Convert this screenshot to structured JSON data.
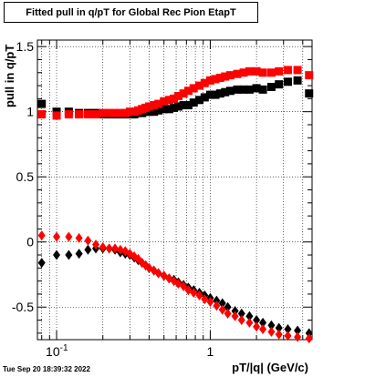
{
  "chart_data": {
    "type": "scatter",
    "title": "Fitted pull in q/pT for Global Rec Pion EtapT",
    "xlabel": "pT/|q| (GeV/c)",
    "ylabel": "pull in q/pT",
    "xscale": "log",
    "xlim": [
      0.075,
      4.6
    ],
    "ylim": [
      -0.75,
      1.55
    ],
    "x_tick_labels": [
      "10^-1",
      "1"
    ],
    "y_tick_labels": [
      "-0.5",
      "0",
      "0.5",
      "1",
      "1.5"
    ],
    "grid": true,
    "colors": {
      "black_series": "#000000",
      "red_series": "#ff0000"
    },
    "series": [
      {
        "marker": "square",
        "color": "black",
        "points": [
          [
            0.08,
            1.06
          ],
          [
            0.1,
            1.0
          ],
          [
            0.12,
            1.0
          ],
          [
            0.14,
            0.99
          ],
          [
            0.16,
            0.99
          ],
          [
            0.18,
            0.99
          ],
          [
            0.2,
            0.98
          ],
          [
            0.22,
            0.98
          ],
          [
            0.24,
            0.98
          ],
          [
            0.26,
            0.98
          ],
          [
            0.28,
            0.98
          ],
          [
            0.3,
            0.98
          ],
          [
            0.32,
            0.98
          ],
          [
            0.34,
            0.99
          ],
          [
            0.36,
            0.99
          ],
          [
            0.38,
            1.0
          ],
          [
            0.4,
            1.0
          ],
          [
            0.43,
            1.0
          ],
          [
            0.46,
            1.01
          ],
          [
            0.5,
            1.02
          ],
          [
            0.54,
            1.02
          ],
          [
            0.58,
            1.03
          ],
          [
            0.62,
            1.04
          ],
          [
            0.67,
            1.05
          ],
          [
            0.72,
            1.05
          ],
          [
            0.78,
            1.07
          ],
          [
            0.85,
            1.09
          ],
          [
            0.92,
            1.11
          ],
          [
            1.0,
            1.13
          ],
          [
            1.08,
            1.13
          ],
          [
            1.16,
            1.14
          ],
          [
            1.25,
            1.15
          ],
          [
            1.35,
            1.16
          ],
          [
            1.5,
            1.17
          ],
          [
            1.65,
            1.17
          ],
          [
            1.8,
            1.17
          ],
          [
            2.0,
            1.18
          ],
          [
            2.2,
            1.17
          ],
          [
            2.5,
            1.19
          ],
          [
            2.8,
            1.21
          ],
          [
            3.2,
            1.23
          ],
          [
            3.7,
            1.24
          ],
          [
            4.4,
            1.14
          ]
        ]
      },
      {
        "marker": "square",
        "color": "red",
        "points": [
          [
            0.08,
            0.98
          ],
          [
            0.1,
            0.97
          ],
          [
            0.12,
            0.98
          ],
          [
            0.14,
            0.98
          ],
          [
            0.16,
            0.98
          ],
          [
            0.18,
            0.98
          ],
          [
            0.2,
            0.99
          ],
          [
            0.22,
            0.99
          ],
          [
            0.24,
            0.99
          ],
          [
            0.26,
            0.99
          ],
          [
            0.28,
            0.99
          ],
          [
            0.3,
            1.0
          ],
          [
            0.32,
            1.0
          ],
          [
            0.34,
            1.01
          ],
          [
            0.36,
            1.02
          ],
          [
            0.38,
            1.03
          ],
          [
            0.4,
            1.04
          ],
          [
            0.43,
            1.05
          ],
          [
            0.46,
            1.06
          ],
          [
            0.5,
            1.08
          ],
          [
            0.54,
            1.09
          ],
          [
            0.58,
            1.1
          ],
          [
            0.62,
            1.12
          ],
          [
            0.67,
            1.14
          ],
          [
            0.72,
            1.16
          ],
          [
            0.78,
            1.18
          ],
          [
            0.85,
            1.2
          ],
          [
            0.92,
            1.22
          ],
          [
            1.0,
            1.24
          ],
          [
            1.08,
            1.25
          ],
          [
            1.16,
            1.26
          ],
          [
            1.25,
            1.27
          ],
          [
            1.35,
            1.28
          ],
          [
            1.5,
            1.29
          ],
          [
            1.65,
            1.3
          ],
          [
            1.8,
            1.31
          ],
          [
            2.0,
            1.31
          ],
          [
            2.2,
            1.3
          ],
          [
            2.5,
            1.3
          ],
          [
            2.8,
            1.31
          ],
          [
            3.2,
            1.32
          ],
          [
            3.7,
            1.32
          ],
          [
            4.4,
            1.28
          ]
        ]
      },
      {
        "marker": "diamond",
        "color": "black",
        "points": [
          [
            0.08,
            -0.16
          ],
          [
            0.1,
            -0.1
          ],
          [
            0.12,
            -0.1
          ],
          [
            0.14,
            -0.09
          ],
          [
            0.16,
            -0.06
          ],
          [
            0.18,
            -0.05
          ],
          [
            0.2,
            -0.05
          ],
          [
            0.22,
            -0.05
          ],
          [
            0.24,
            -0.06
          ],
          [
            0.26,
            -0.08
          ],
          [
            0.28,
            -0.09
          ],
          [
            0.3,
            -0.1
          ],
          [
            0.32,
            -0.12
          ],
          [
            0.34,
            -0.14
          ],
          [
            0.36,
            -0.16
          ],
          [
            0.38,
            -0.18
          ],
          [
            0.4,
            -0.2
          ],
          [
            0.43,
            -0.22
          ],
          [
            0.46,
            -0.24
          ],
          [
            0.5,
            -0.26
          ],
          [
            0.54,
            -0.28
          ],
          [
            0.58,
            -0.29
          ],
          [
            0.62,
            -0.31
          ],
          [
            0.67,
            -0.33
          ],
          [
            0.72,
            -0.35
          ],
          [
            0.78,
            -0.37
          ],
          [
            0.85,
            -0.39
          ],
          [
            0.92,
            -0.41
          ],
          [
            1.0,
            -0.43
          ],
          [
            1.1,
            -0.45
          ],
          [
            1.2,
            -0.47
          ],
          [
            1.3,
            -0.5
          ],
          [
            1.45,
            -0.53
          ],
          [
            1.6,
            -0.55
          ],
          [
            1.8,
            -0.57
          ],
          [
            2.0,
            -0.6
          ],
          [
            2.2,
            -0.62
          ],
          [
            2.5,
            -0.64
          ],
          [
            2.8,
            -0.66
          ],
          [
            3.2,
            -0.67
          ],
          [
            3.7,
            -0.68
          ],
          [
            4.4,
            -0.7
          ]
        ]
      },
      {
        "marker": "diamond",
        "color": "red",
        "points": [
          [
            0.08,
            0.05
          ],
          [
            0.1,
            0.04
          ],
          [
            0.12,
            0.04
          ],
          [
            0.14,
            0.03
          ],
          [
            0.16,
            0.01
          ],
          [
            0.18,
            -0.02
          ],
          [
            0.2,
            -0.04
          ],
          [
            0.22,
            -0.05
          ],
          [
            0.24,
            -0.05
          ],
          [
            0.26,
            -0.06
          ],
          [
            0.28,
            -0.07
          ],
          [
            0.3,
            -0.09
          ],
          [
            0.32,
            -0.11
          ],
          [
            0.34,
            -0.13
          ],
          [
            0.36,
            -0.16
          ],
          [
            0.38,
            -0.18
          ],
          [
            0.4,
            -0.2
          ],
          [
            0.43,
            -0.22
          ],
          [
            0.46,
            -0.24
          ],
          [
            0.5,
            -0.26
          ],
          [
            0.54,
            -0.28
          ],
          [
            0.58,
            -0.3
          ],
          [
            0.62,
            -0.32
          ],
          [
            0.67,
            -0.34
          ],
          [
            0.72,
            -0.37
          ],
          [
            0.78,
            -0.39
          ],
          [
            0.85,
            -0.41
          ],
          [
            0.92,
            -0.44
          ],
          [
            1.0,
            -0.46
          ],
          [
            1.1,
            -0.49
          ],
          [
            1.2,
            -0.52
          ],
          [
            1.3,
            -0.55
          ],
          [
            1.45,
            -0.57
          ],
          [
            1.6,
            -0.6
          ],
          [
            1.8,
            -0.62
          ],
          [
            2.0,
            -0.65
          ],
          [
            2.2,
            -0.67
          ],
          [
            2.5,
            -0.69
          ],
          [
            2.8,
            -0.71
          ],
          [
            3.2,
            -0.72
          ],
          [
            3.7,
            -0.73
          ],
          [
            4.4,
            -0.74
          ]
        ]
      }
    ]
  },
  "timestamp": "Tue Sep 20 18:39:32 2022"
}
